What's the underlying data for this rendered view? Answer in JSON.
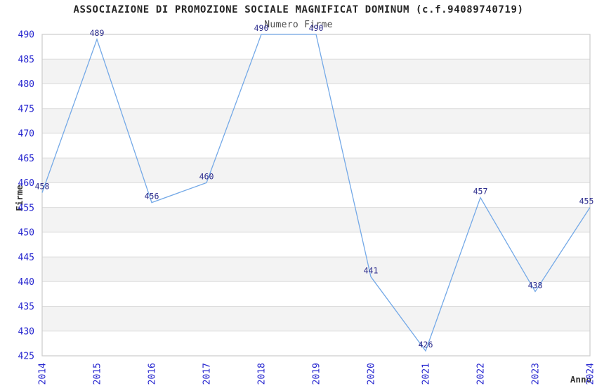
{
  "chart_data": {
    "type": "line",
    "title": "ASSOCIAZIONE DI PROMOZIONE SOCIALE MAGNIFICAT DOMINUM (c.f.94089740719)",
    "subtitle": "Numero Firme",
    "xlabel": "Anno",
    "ylabel": "Firme",
    "categories": [
      "2014",
      "2015",
      "2016",
      "2017",
      "2018",
      "2019",
      "2020",
      "2021",
      "2022",
      "2023",
      "2024"
    ],
    "series": [
      {
        "name": "Numero Firme",
        "values": [
          458,
          489,
          456,
          460,
          490,
          490,
          441,
          426,
          457,
          438,
          455
        ]
      }
    ],
    "data_labels": [
      "458",
      "489",
      "456",
      "460",
      "490",
      "490",
      "441",
      "426",
      "457",
      "438",
      "455"
    ],
    "ylim": [
      425,
      490
    ],
    "ytick_step": 5,
    "yticks": [
      "490",
      "485",
      "480",
      "475",
      "470",
      "465",
      "460",
      "455",
      "450",
      "445",
      "440",
      "435",
      "430",
      "425"
    ],
    "legend": "none",
    "grid": "horizontal gridlines every 5 units with alternating shaded bands",
    "markers": "none",
    "colors": {
      "line": "#74A9E7",
      "tick_labels": "#2424CF",
      "data_labels": "#2B2B8C",
      "band_shaded": "#F3F3F3",
      "band_plain": "#FFFFFF",
      "gridline": "#DBDBDB",
      "plot_border": "#CCCCCC",
      "title_text": "#262626",
      "subtitle_text": "#4B4B4B",
      "axis_title_text": "#333333",
      "background": "#FFFFFF"
    }
  }
}
